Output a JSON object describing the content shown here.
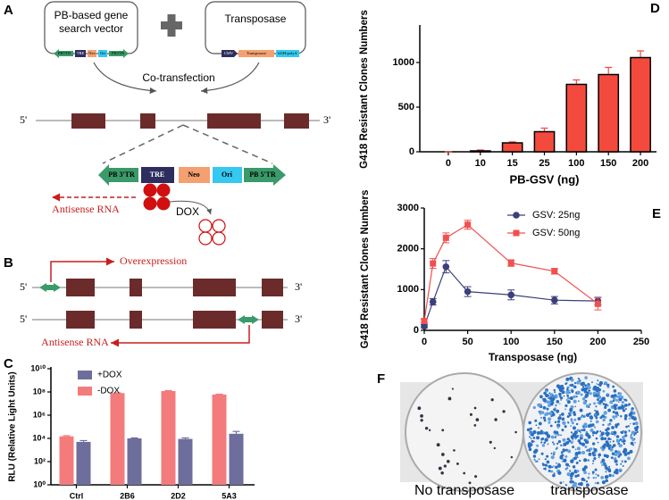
{
  "panel_labels": [
    "A",
    "B",
    "C",
    "D",
    "E",
    "F"
  ],
  "diagram": {
    "vector1": {
      "title_lines": [
        "PB-based gene",
        "search vector"
      ],
      "elements": [
        "PB5'TR",
        "TRE",
        "Neo",
        "Ori",
        "PB3'TR"
      ]
    },
    "vector2": {
      "title": "Transposase",
      "elements": [
        "CMV",
        "Transposase",
        "bGH-polyA"
      ]
    },
    "transfection": "Co-transfection",
    "end5": "5'",
    "end3": "3'",
    "cassette": [
      "PB 3'TR",
      "TRE",
      "Neo",
      "Ori",
      "PB 5'TR"
    ],
    "antisense_a": "Antisense RNA",
    "dox": "DOX",
    "overexpression": "Overexpression",
    "antisense_b": "Antisense RNA"
  },
  "photo": {
    "captions": [
      "No transposase",
      "transposase"
    ]
  },
  "chart_data": [
    {
      "type": "bar",
      "log_scale": true,
      "y_label": "RLU (Relative Light Units)",
      "categories": [
        "Ctrl",
        "2B6",
        "2D2",
        "5A3"
      ],
      "series": [
        {
          "name": "+DOX",
          "color": "#6e6e9c",
          "values": [
            5000,
            10000,
            9000,
            25000
          ],
          "errors": [
            1500,
            1000,
            2000,
            15000
          ]
        },
        {
          "name": "-DOX",
          "color": "#f47b7b",
          "values": [
            15000,
            80000000,
            120000000,
            60000000
          ],
          "errors": [
            2000,
            5000000,
            10000000,
            5000000
          ]
        }
      ],
      "ylim": [
        1,
        10000000000
      ],
      "yticks": [
        {
          "value": 1,
          "label": "10⁰"
        },
        {
          "value": 100,
          "label": "10²"
        },
        {
          "value": 10000,
          "label": "10⁴"
        },
        {
          "value": 1000000,
          "label": "10⁶"
        },
        {
          "value": 100000000,
          "label": "10⁸"
        },
        {
          "value": 10000000000,
          "label": "10¹⁰"
        }
      ],
      "legend": "upper left"
    },
    {
      "type": "bar",
      "x_label": "PB-GSV (ng)",
      "y_label": "G418 Resistant Clones Numbers",
      "categories": [
        "0",
        "10",
        "15",
        "25",
        "100",
        "150",
        "200"
      ],
      "values": [
        0,
        10,
        100,
        225,
        755,
        865,
        1055
      ],
      "errors": [
        0,
        10,
        12,
        40,
        50,
        80,
        75
      ],
      "color": "#f44a3e",
      "ylim": [
        0,
        1400
      ],
      "yticks": [
        0,
        500,
        1000
      ]
    },
    {
      "type": "line",
      "x_label": "Transposase (ng)",
      "y_label": "G418 Resistant Clones Numbers",
      "x": [
        0,
        10,
        25,
        50,
        100,
        150,
        200
      ],
      "series": [
        {
          "name": "GSV: 25ng",
          "color": "#3b3f7a",
          "marker": "circle",
          "values": [
            100,
            700,
            1560,
            950,
            870,
            740,
            720
          ],
          "errors": [
            40,
            80,
            150,
            120,
            120,
            90,
            90
          ]
        },
        {
          "name": "GSV: 50ng",
          "color": "#f05050",
          "marker": "square",
          "values": [
            230,
            1640,
            2270,
            2590,
            1650,
            1450,
            650
          ],
          "errors": [
            50,
            120,
            120,
            110,
            80,
            70,
            150
          ]
        }
      ],
      "xlim": [
        0,
        250
      ],
      "xticks": [
        0,
        50,
        100,
        150,
        200,
        250
      ],
      "ylim": [
        0,
        3000
      ],
      "yticks": [
        0,
        1000,
        2000,
        3000
      ],
      "legend": "upper right"
    }
  ]
}
